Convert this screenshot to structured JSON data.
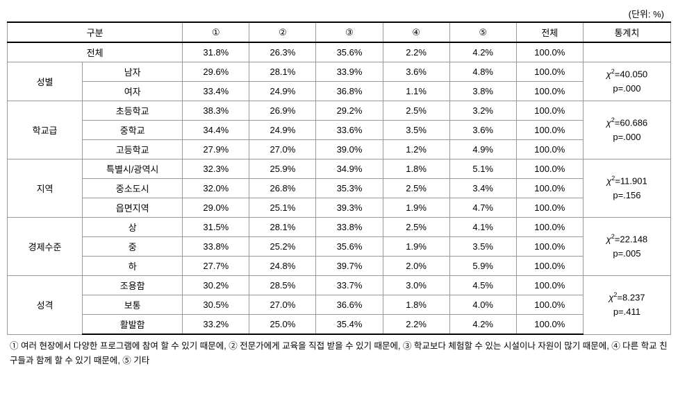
{
  "unit_label": "(단위: %)",
  "header": {
    "division": "구분",
    "cols": [
      "①",
      "②",
      "③",
      "④",
      "⑤"
    ],
    "total": "전체",
    "stat": "통계치"
  },
  "groups": [
    {
      "name": "전체",
      "spans_full": true,
      "rows": [
        {
          "label": "",
          "vals": [
            "31.8%",
            "26.3%",
            "35.6%",
            "2.2%",
            "4.2%"
          ],
          "total": "100.0%"
        }
      ],
      "stat": {
        "chi": "",
        "p": ""
      }
    },
    {
      "name": "성별",
      "rows": [
        {
          "label": "남자",
          "vals": [
            "29.6%",
            "28.1%",
            "33.9%",
            "3.6%",
            "4.8%"
          ],
          "total": "100.0%"
        },
        {
          "label": "여자",
          "vals": [
            "33.4%",
            "24.9%",
            "36.8%",
            "1.1%",
            "3.8%"
          ],
          "total": "100.0%"
        }
      ],
      "stat": {
        "chi": "=40.050",
        "p": "p=.000"
      }
    },
    {
      "name": "학교급",
      "rows": [
        {
          "label": "초등학교",
          "vals": [
            "38.3%",
            "26.9%",
            "29.2%",
            "2.5%",
            "3.2%"
          ],
          "total": "100.0%"
        },
        {
          "label": "중학교",
          "vals": [
            "34.4%",
            "24.9%",
            "33.6%",
            "3.5%",
            "3.6%"
          ],
          "total": "100.0%"
        },
        {
          "label": "고등학교",
          "vals": [
            "27.9%",
            "27.0%",
            "39.0%",
            "1.2%",
            "4.9%"
          ],
          "total": "100.0%"
        }
      ],
      "stat": {
        "chi": "=60.686",
        "p": "p=.000"
      }
    },
    {
      "name": "지역",
      "rows": [
        {
          "label": "특별시/광역시",
          "vals": [
            "32.3%",
            "25.9%",
            "34.9%",
            "1.8%",
            "5.1%"
          ],
          "total": "100.0%"
        },
        {
          "label": "중소도시",
          "vals": [
            "32.0%",
            "26.8%",
            "35.3%",
            "2.5%",
            "3.4%"
          ],
          "total": "100.0%"
        },
        {
          "label": "읍면지역",
          "vals": [
            "29.0%",
            "25.1%",
            "39.3%",
            "1.9%",
            "4.7%"
          ],
          "total": "100.0%"
        }
      ],
      "stat": {
        "chi": "=11.901",
        "p": "p=.156"
      }
    },
    {
      "name": "경제수준",
      "rows": [
        {
          "label": "상",
          "vals": [
            "31.5%",
            "28.1%",
            "33.8%",
            "2.5%",
            "4.1%"
          ],
          "total": "100.0%"
        },
        {
          "label": "중",
          "vals": [
            "33.8%",
            "25.2%",
            "35.6%",
            "1.9%",
            "3.5%"
          ],
          "total": "100.0%"
        },
        {
          "label": "하",
          "vals": [
            "27.7%",
            "24.8%",
            "39.7%",
            "2.0%",
            "5.9%"
          ],
          "total": "100.0%"
        }
      ],
      "stat": {
        "chi": "=22.148",
        "p": "p=.005"
      }
    },
    {
      "name": "성격",
      "rows": [
        {
          "label": "조용함",
          "vals": [
            "30.2%",
            "28.5%",
            "33.7%",
            "3.0%",
            "4.5%"
          ],
          "total": "100.0%"
        },
        {
          "label": "보통",
          "vals": [
            "30.5%",
            "27.0%",
            "36.6%",
            "1.8%",
            "4.0%"
          ],
          "total": "100.0%"
        },
        {
          "label": "활발함",
          "vals": [
            "33.2%",
            "25.0%",
            "35.4%",
            "2.2%",
            "4.2%"
          ],
          "total": "100.0%"
        }
      ],
      "stat": {
        "chi": "=8.237",
        "p": "p=.411"
      }
    }
  ],
  "footnote": "① 여러 현장에서 다양한 프로그램에 참여 할 수 있기 때문에, ② 전문가에게 교육을 직접 받을 수 있기 때문에, ③ 학교보다 체험할 수 있는 시설이나 자원이 많기 때문에, ④ 다른 학교 친구들과 함께 할 수 있기 때문에, ⑤ 기타",
  "style": {
    "font_family": "Malgun Gothic",
    "font_size_pt": 13,
    "border_color": "#999999",
    "heavy_border_color": "#000000",
    "background_color": "#ffffff",
    "text_color": "#000000",
    "chi_symbol": "χ",
    "chi_sup": "2"
  }
}
